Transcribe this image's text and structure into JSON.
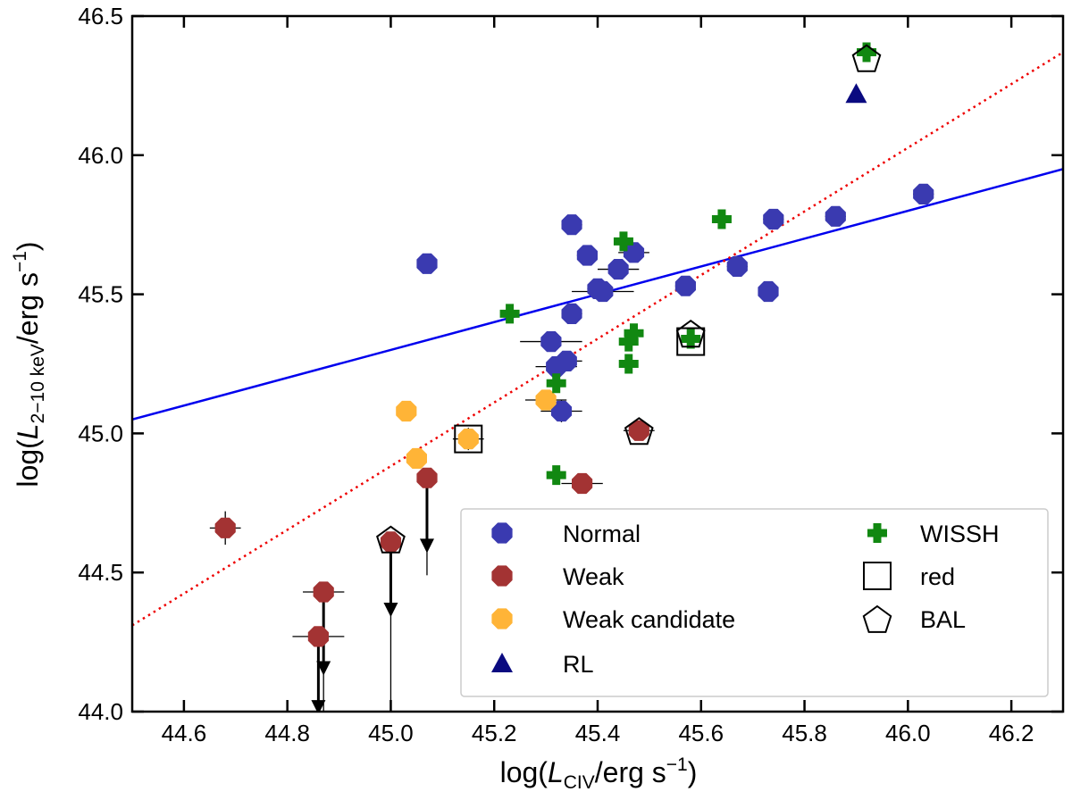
{
  "chart_data": {
    "type": "scatter",
    "title": "",
    "xlabel": {
      "pre": "log(",
      "italic": "L",
      "sub": "CIV",
      "post": "/erg s",
      "sup": "−1",
      "close": ")"
    },
    "ylabel": {
      "pre": "log(",
      "italic": "L",
      "sub": "2−10 keV",
      "post": "/erg s",
      "sup": "−1",
      "close": ")"
    },
    "xlim": [
      44.5,
      46.3
    ],
    "ylim": [
      44.0,
      46.5
    ],
    "x_ticks": [
      {
        "v": 44.6,
        "label": "44.6"
      },
      {
        "v": 44.8,
        "label": "44.8"
      },
      {
        "v": 45.0,
        "label": "45.0"
      },
      {
        "v": 45.2,
        "label": "45.2"
      },
      {
        "v": 45.4,
        "label": "45.4"
      },
      {
        "v": 45.6,
        "label": "45.6"
      },
      {
        "v": 45.8,
        "label": "45.8"
      },
      {
        "v": 46.0,
        "label": "46.0"
      },
      {
        "v": 46.2,
        "label": "46.2"
      }
    ],
    "y_ticks": [
      {
        "v": 44.0,
        "label": "44.0"
      },
      {
        "v": 44.5,
        "label": "44.5"
      },
      {
        "v": 45.0,
        "label": "45.0"
      },
      {
        "v": 45.5,
        "label": "45.5"
      },
      {
        "v": 46.0,
        "label": "46.0"
      },
      {
        "v": 46.5,
        "label": "46.5"
      }
    ],
    "lines": [
      {
        "name": "fit",
        "style": "solid",
        "color": "#0000ee",
        "x": [
          44.5,
          46.3
        ],
        "y": [
          45.05,
          45.95
        ]
      },
      {
        "name": "relation",
        "style": "dotted",
        "color": "#ee0000",
        "x": [
          44.5,
          46.3
        ],
        "y": [
          44.31,
          46.37
        ]
      }
    ],
    "series": [
      {
        "name": "Normal",
        "marker": "octagon",
        "color": "#3a3ab0",
        "points": [
          {
            "x": 45.07,
            "y": 45.61,
            "xerr": 0.01,
            "yerr": 0.02
          },
          {
            "x": 45.35,
            "y": 45.75,
            "xerr": 0.02,
            "yerr": 0.02
          },
          {
            "x": 45.38,
            "y": 45.64,
            "xerr": 0.02,
            "yerr": 0.02
          },
          {
            "x": 45.4,
            "y": 45.52,
            "xerr": 0.02,
            "yerr": 0.02
          },
          {
            "x": 45.41,
            "y": 45.51,
            "xerr": 0.06,
            "yerr": 0.02
          },
          {
            "x": 45.44,
            "y": 45.59,
            "xerr": 0.04,
            "yerr": 0.02
          },
          {
            "x": 45.47,
            "y": 45.65,
            "xerr": 0.03,
            "yerr": 0.02
          },
          {
            "x": 45.35,
            "y": 45.43,
            "xerr": 0.02,
            "yerr": 0.02
          },
          {
            "x": 45.31,
            "y": 45.33,
            "xerr": 0.06,
            "yerr": 0.02
          },
          {
            "x": 45.32,
            "y": 45.24,
            "xerr": 0.04,
            "yerr": 0.02
          },
          {
            "x": 45.34,
            "y": 45.26,
            "xerr": 0.03,
            "yerr": 0.02
          },
          {
            "x": 45.33,
            "y": 45.08,
            "xerr": 0.04,
            "yerr": 0.04
          },
          {
            "x": 45.57,
            "y": 45.53,
            "xerr": 0.02,
            "yerr": 0.02
          },
          {
            "x": 45.67,
            "y": 45.6,
            "xerr": 0.02,
            "yerr": 0.02
          },
          {
            "x": 45.73,
            "y": 45.51,
            "xerr": 0.01,
            "yerr": 0.03
          },
          {
            "x": 45.74,
            "y": 45.77,
            "xerr": 0.02,
            "yerr": 0.02
          },
          {
            "x": 45.86,
            "y": 45.78,
            "xerr": 0.02,
            "yerr": 0.02
          },
          {
            "x": 46.03,
            "y": 45.86,
            "xerr": 0.02,
            "yerr": 0.02
          }
        ]
      },
      {
        "name": "Weak",
        "marker": "octagon",
        "color": "#a33333",
        "points": [
          {
            "x": 44.68,
            "y": 44.66,
            "xerr": 0.03,
            "yerr": 0.06
          },
          {
            "x": 44.86,
            "y": 44.27,
            "xerr": 0.05,
            "yerr": 0.03
          },
          {
            "x": 44.87,
            "y": 44.43,
            "xerr": 0.04,
            "yerr": 0.03
          },
          {
            "x": 45.0,
            "y": 44.61,
            "xerr": 0.02,
            "yerr": 0.03
          },
          {
            "x": 45.07,
            "y": 44.84,
            "xerr": 0.01,
            "yerr": 0.02
          },
          {
            "x": 45.37,
            "y": 44.82,
            "xerr": 0.04,
            "yerr": 0.02
          },
          {
            "x": 45.48,
            "y": 45.01,
            "xerr": 0.03,
            "yerr": 0.02
          }
        ]
      },
      {
        "name": "Weak candidate",
        "marker": "octagon",
        "color": "#ffb437",
        "points": [
          {
            "x": 45.03,
            "y": 45.08,
            "xerr": 0.01,
            "yerr": 0.02
          },
          {
            "x": 45.05,
            "y": 44.91,
            "xerr": 0.02,
            "yerr": 0.02
          },
          {
            "x": 45.15,
            "y": 44.98,
            "xerr": 0.03,
            "yerr": 0.04
          },
          {
            "x": 45.3,
            "y": 45.12,
            "xerr": 0.04,
            "yerr": 0.02
          }
        ]
      },
      {
        "name": "RL",
        "marker": "triangle",
        "color": "#0a0a80",
        "points": [
          {
            "x": 45.9,
            "y": 46.22
          }
        ]
      },
      {
        "name": "WISSH",
        "marker": "plus",
        "color": "#118811",
        "points": [
          {
            "x": 45.23,
            "y": 45.43
          },
          {
            "x": 45.32,
            "y": 45.18
          },
          {
            "x": 45.32,
            "y": 44.85
          },
          {
            "x": 45.45,
            "y": 45.69
          },
          {
            "x": 45.46,
            "y": 45.33
          },
          {
            "x": 45.46,
            "y": 45.25
          },
          {
            "x": 45.47,
            "y": 45.36
          },
          {
            "x": 45.58,
            "y": 45.34
          },
          {
            "x": 45.64,
            "y": 45.77
          },
          {
            "x": 45.92,
            "y": 46.37
          }
        ]
      },
      {
        "name": "red",
        "marker": "square-open",
        "color": "#000000",
        "points": [
          {
            "x": 45.15,
            "y": 44.98
          },
          {
            "x": 45.58,
            "y": 45.33
          }
        ]
      },
      {
        "name": "BAL",
        "marker": "pentagon-open",
        "color": "#000000",
        "points": [
          {
            "x": 45.0,
            "y": 44.62
          },
          {
            "x": 45.48,
            "y": 45.01
          },
          {
            "x": 45.58,
            "y": 45.36
          },
          {
            "x": 45.92,
            "y": 46.35
          }
        ]
      }
    ],
    "upper_limits": [
      {
        "x": 44.86,
        "y_top": 44.27,
        "y_arrow": 43.99,
        "y_err_low": 43.99
      },
      {
        "x": 44.87,
        "y_top": 44.43,
        "y_arrow": 44.13,
        "y_err_low": 43.97
      },
      {
        "x": 45.0,
        "y_top": 44.61,
        "y_arrow": 44.34,
        "y_err_low": 44.02
      },
      {
        "x": 45.07,
        "y_top": 44.84,
        "y_arrow": 44.57,
        "y_err_low": 44.49
      }
    ],
    "legend": {
      "position": "lower-right",
      "entries": [
        {
          "label": "Normal",
          "marker": "octagon",
          "color": "#3a3ab0"
        },
        {
          "label": "Weak",
          "marker": "octagon",
          "color": "#a33333"
        },
        {
          "label": "Weak candidate",
          "marker": "octagon",
          "color": "#ffb437"
        },
        {
          "label": "RL",
          "marker": "triangle",
          "color": "#0a0a80"
        },
        {
          "label": "WISSH",
          "marker": "plus",
          "color": "#118811"
        },
        {
          "label": "red",
          "marker": "square-open",
          "color": "#000000"
        },
        {
          "label": "BAL",
          "marker": "pentagon-open",
          "color": "#000000"
        }
      ]
    }
  }
}
